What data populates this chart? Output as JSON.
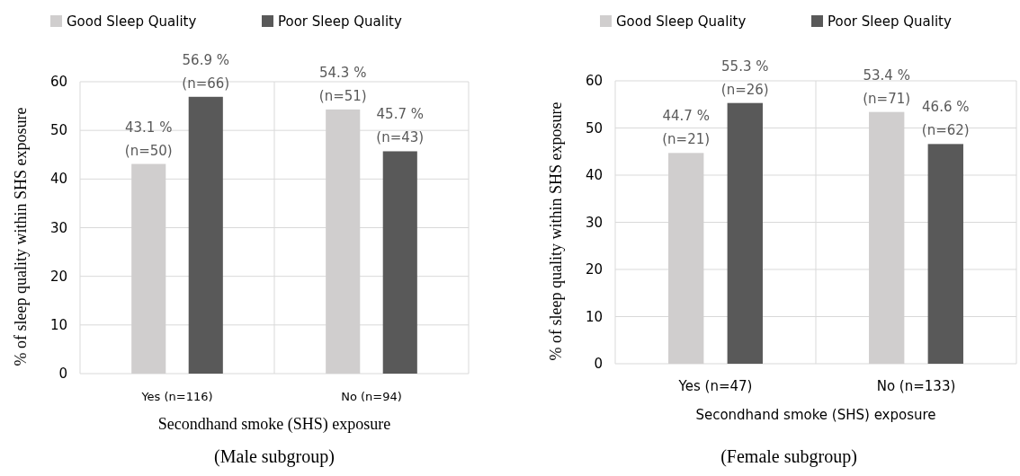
{
  "chart_data": [
    {
      "type": "bar",
      "categories": [
        "Yes (n=116)",
        "No (n=94)"
      ],
      "xlabel": "Secondhand smoke (SHS) exposure",
      "ylabel": "% of sleep quality within SHS exposure",
      "ylim": [
        0,
        60
      ],
      "yticks": [
        0,
        10,
        20,
        30,
        40,
        50,
        60
      ],
      "grid": true,
      "legend": "top",
      "series": [
        {
          "name": "Good Sleep Quality",
          "color": "#d0cece",
          "values": [
            43.1,
            54.3
          ],
          "value_labels": [
            "43.1 %\n(n=50)",
            "54.3 %\n(n=51)"
          ]
        },
        {
          "name": "Poor Sleep Quality",
          "color": "#595959",
          "values": [
            56.9,
            45.7
          ],
          "value_labels": [
            "56.9 %\n(n=66)",
            "45.7 %\n(n=43)"
          ]
        }
      ],
      "annotations": [
        "(Male subgroup)"
      ]
    },
    {
      "type": "bar",
      "categories": [
        "Yes (n=47)",
        "No (n=133)"
      ],
      "xlabel": "Secondhand smoke (SHS) exposure",
      "ylabel": "% of sleep quality within SHS exposure",
      "ylim": [
        0,
        60
      ],
      "yticks": [
        0,
        10,
        20,
        30,
        40,
        50,
        60
      ],
      "grid": true,
      "legend": "top",
      "series": [
        {
          "name": "Good Sleep Quality",
          "color": "#d0cece",
          "values": [
            44.7,
            53.4
          ],
          "value_labels": [
            "44.7 %\n(n=21)",
            "53.4 %\n(n=71)"
          ]
        },
        {
          "name": "Poor Sleep Quality",
          "color": "#595959",
          "values": [
            55.3,
            46.6
          ],
          "value_labels": [
            "55.3 %\n(n=26)",
            "46.6 %\n(n=62)"
          ]
        }
      ],
      "annotations": [
        "(Female subgroup)"
      ]
    }
  ]
}
